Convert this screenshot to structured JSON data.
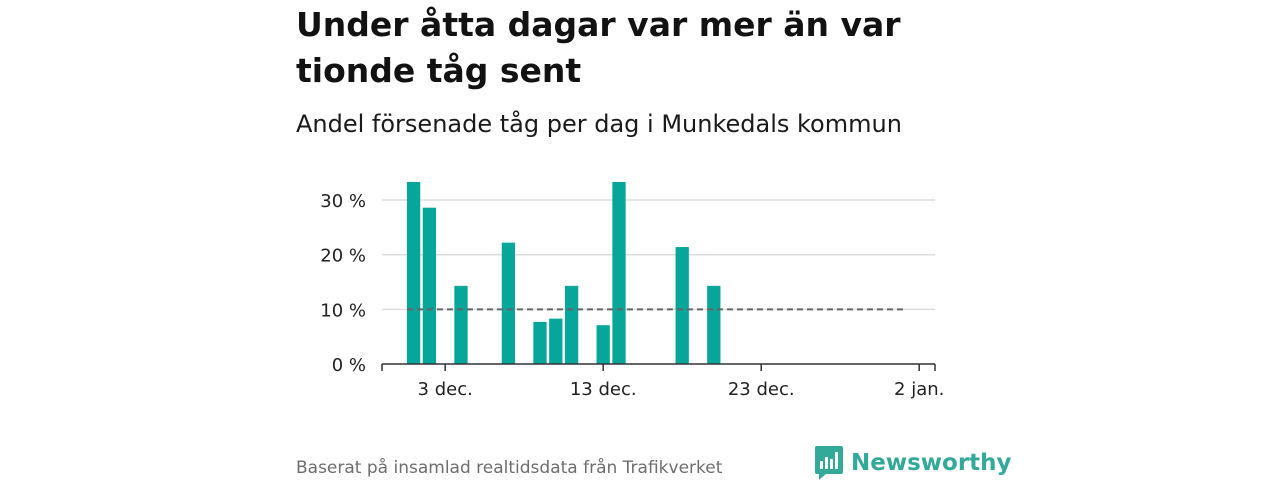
{
  "header": {
    "title": "Under åtta dagar var mer än var tionde tåg sent",
    "subtitle": "Andel försenade tåg per dag i Munkedals kommun"
  },
  "footer": {
    "source": "Baserat på insamlad realtidsdata från Trafikverket",
    "brand": "Newsworthy",
    "brand_icon": "newsworthy-logo-icon"
  },
  "colors": {
    "bar": "#06a79a",
    "reference_line": "#666666",
    "grid": "#dddddd",
    "axis": "#333333",
    "brand": "#33a99a"
  },
  "chart_data": {
    "type": "bar",
    "x_unit": "day",
    "y_unit": "percent",
    "x": [
      "2024-12-01",
      "2024-12-02",
      "2024-12-04",
      "2024-12-07",
      "2024-12-09",
      "2024-12-10",
      "2024-12-11",
      "2024-12-13",
      "2024-12-14",
      "2024-12-18",
      "2024-12-20"
    ],
    "values": [
      33.3,
      28.6,
      14.3,
      22.2,
      7.7,
      8.3,
      14.3,
      7.1,
      33.3,
      21.4,
      14.3
    ],
    "xlim": [
      "2024-11-29",
      "2025-01-03"
    ],
    "ylim": [
      0,
      33.3
    ],
    "yticks": [
      0,
      10,
      20,
      30
    ],
    "ytick_labels": [
      "0 %",
      "10 %",
      "20 %",
      "30 %"
    ],
    "xticks": [
      "2024-12-03",
      "2024-12-13",
      "2024-12-23",
      "2025-01-02"
    ],
    "xtick_labels": [
      "3 dec.",
      "13 dec.",
      "23 dec.",
      "2 jan."
    ],
    "reference_line": {
      "value": 10,
      "style": "dashed",
      "from": "2024-12-01",
      "to": "2025-01-01"
    },
    "grid": "horizontal"
  }
}
